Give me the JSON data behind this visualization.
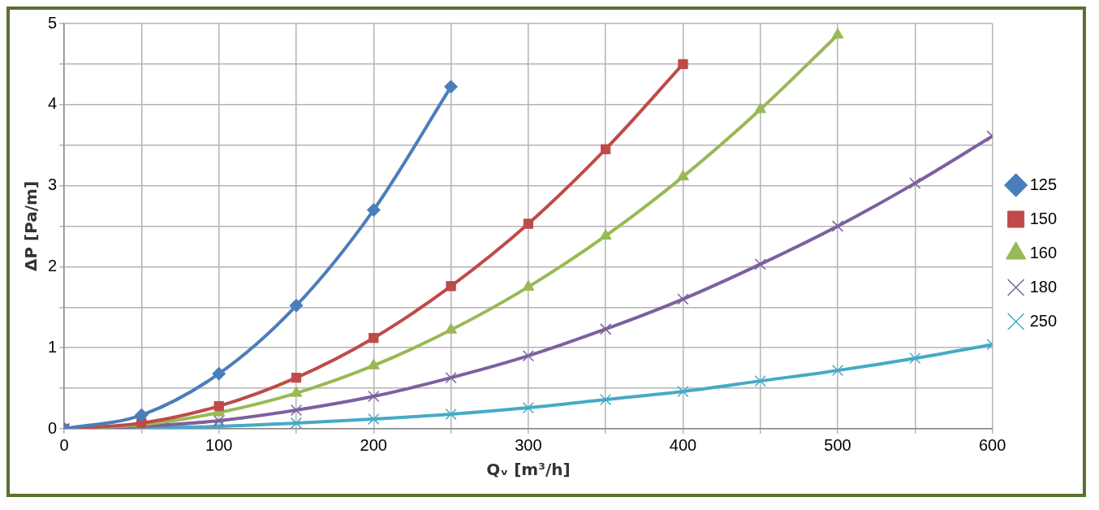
{
  "chart_data": {
    "type": "line",
    "xlabel": "Qᵥ [m³/h]",
    "ylabel": "ΔP [Pa/m]",
    "x": [
      0,
      50,
      100,
      150,
      200,
      250,
      300,
      350,
      400,
      450,
      500,
      550,
      600
    ],
    "xlim": [
      0,
      600
    ],
    "xticks": [
      0,
      {
        "value": 50,
        "label": null
      },
      100,
      {
        "value": 150,
        "label": null
      },
      200,
      {
        "value": 250,
        "label": null
      },
      300,
      {
        "value": 350,
        "label": null
      },
      400,
      {
        "value": 450,
        "label": null
      },
      500,
      {
        "value": 550,
        "label": null
      },
      600
    ],
    "ylim": [
      0,
      5
    ],
    "yticks": [
      0,
      {
        "value": 0.5,
        "label": null
      },
      1,
      {
        "value": 1.5,
        "label": null
      },
      2,
      {
        "value": 2.5,
        "label": null
      },
      3,
      {
        "value": 3.5,
        "label": null
      },
      4,
      {
        "value": 4.5,
        "label": null
      },
      5
    ],
    "grid": true,
    "legend": "right",
    "line_style": "solid",
    "series": [
      {
        "name": "125",
        "color": "#4a7ebb",
        "marker": "diamond",
        "values": [
          0,
          0.17,
          0.68,
          1.52,
          2.7,
          4.22,
          null,
          null,
          null,
          null,
          null,
          null,
          null
        ]
      },
      {
        "name": "150",
        "color": "#be4b48",
        "marker": "square",
        "values": [
          0,
          0.07,
          0.28,
          0.63,
          1.12,
          1.76,
          2.53,
          3.45,
          4.5,
          null,
          null,
          null,
          null
        ]
      },
      {
        "name": "160",
        "color": "#98b954",
        "marker": "triangle",
        "values": [
          0,
          0.05,
          0.2,
          0.44,
          0.78,
          1.22,
          1.75,
          2.38,
          3.11,
          3.94,
          4.86,
          null,
          null
        ]
      },
      {
        "name": "180",
        "color": "#7d60a0",
        "marker": "cross",
        "values": [
          0,
          0.03,
          0.1,
          0.23,
          0.4,
          0.63,
          0.9,
          1.23,
          1.6,
          2.03,
          2.5,
          3.03,
          3.61
        ]
      },
      {
        "name": "250",
        "color": "#46aac5",
        "marker": "cross",
        "values": [
          0,
          0.01,
          0.03,
          0.07,
          0.12,
          0.18,
          0.26,
          0.36,
          0.46,
          0.59,
          0.72,
          0.87,
          1.04
        ]
      }
    ]
  }
}
